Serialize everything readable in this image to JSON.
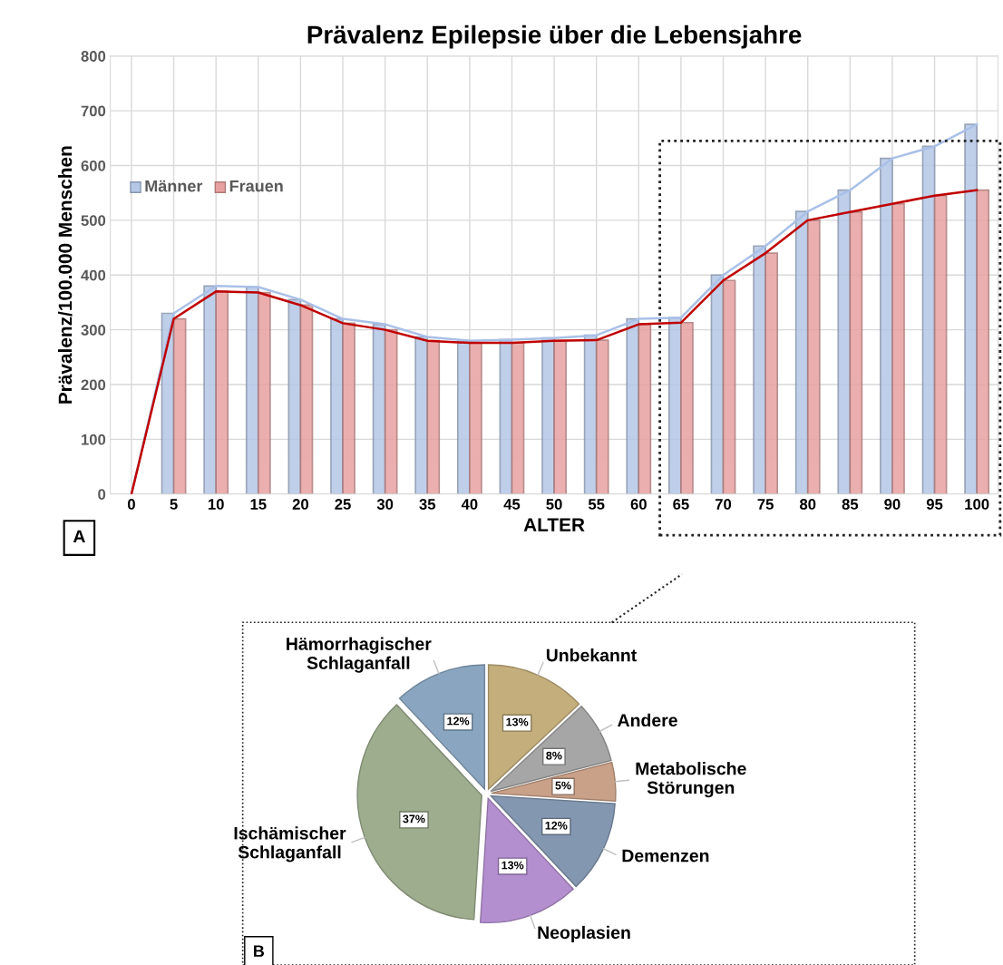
{
  "chart_data": [
    {
      "type": "bar",
      "title": "Prävalenz Epilepsie über die Lebensjahre",
      "xlabel": "ALTER",
      "ylabel": "Prävalenz/100.000 Menschen",
      "categories": [
        "0",
        "5",
        "10",
        "15",
        "20",
        "25",
        "30",
        "35",
        "40",
        "45",
        "50",
        "55",
        "60",
        "65",
        "70",
        "75",
        "80",
        "85",
        "90",
        "95",
        "100"
      ],
      "series": [
        {
          "name": "Männer",
          "color": "#b4c7e7",
          "values": [
            null,
            330,
            380,
            378,
            355,
            320,
            310,
            287,
            280,
            282,
            285,
            290,
            320,
            322,
            400,
            453,
            516,
            555,
            613,
            635,
            675
          ]
        },
        {
          "name": "Frauen",
          "color": "#e8a1a1",
          "values": [
            null,
            320,
            370,
            368,
            345,
            312,
            300,
            280,
            276,
            276,
            280,
            281,
            310,
            313,
            390,
            440,
            500,
            515,
            530,
            545,
            555
          ]
        },
        {
          "type": "line",
          "color": "#a9c0e8",
          "values": [
            0,
            330,
            380,
            378,
            355,
            320,
            310,
            287,
            280,
            282,
            285,
            290,
            320,
            322,
            400,
            453,
            516,
            555,
            613,
            635,
            675
          ]
        },
        {
          "type": "line",
          "color": "#c00000",
          "values": [
            0,
            320,
            370,
            368,
            345,
            312,
            300,
            280,
            276,
            276,
            280,
            281,
            310,
            313,
            390,
            440,
            500,
            515,
            530,
            545,
            555
          ]
        }
      ],
      "ylim": [
        0,
        800
      ],
      "yticks": [
        0,
        100,
        200,
        300,
        400,
        500,
        600,
        700,
        800
      ],
      "grid": true,
      "legend": "left",
      "annotations": [
        "A"
      ]
    },
    {
      "type": "pie",
      "categories": [
        "Hämorrhagischer\nSchlaganfall",
        "Unbekannt",
        "Andere",
        "Metabolische\nStörungen",
        "Demenzen",
        "Neoplasien",
        "Ischämischer\nSchlaganfall"
      ],
      "values": [
        12,
        13,
        8,
        5,
        12,
        13,
        37
      ],
      "value_labels": [
        "12%",
        "13%",
        "8%",
        "5%",
        "12%",
        "13%",
        "37%"
      ],
      "colors": [
        "#8aa5bf",
        "#c4ae7c",
        "#a6a6a6",
        "#c9a088",
        "#8497b0",
        "#b48fd0",
        "#9dad8e"
      ],
      "annotations": [
        "B"
      ]
    }
  ]
}
